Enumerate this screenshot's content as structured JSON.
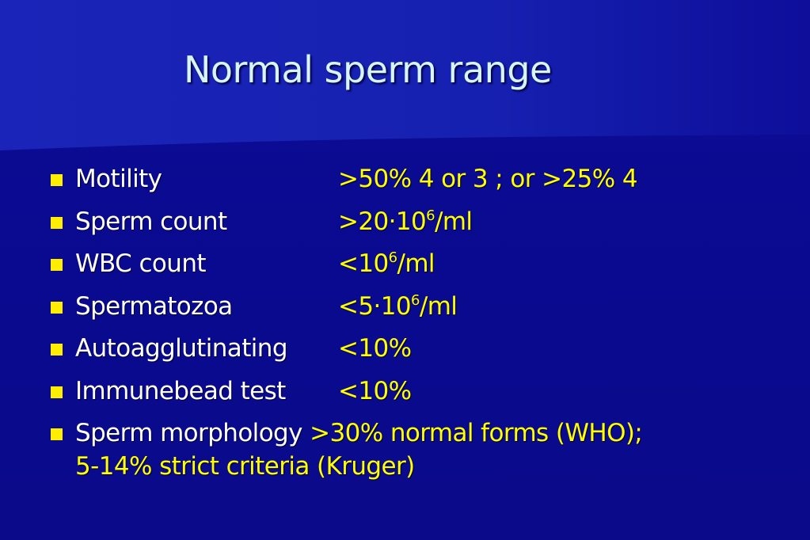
{
  "slide": {
    "title": "Normal sperm range"
  },
  "rows": [
    {
      "label": "Motility",
      "value_pre": ">50% 4 or 3 ; or >25% 4",
      "value_sup": "",
      "value_post": ""
    },
    {
      "label": "Sperm count",
      "value_pre": ">20·10",
      "value_sup": "6",
      "value_post": "/ml"
    },
    {
      "label": "WBC count",
      "value_pre": "<10",
      "value_sup": "6",
      "value_post": "/ml"
    },
    {
      "label": "Spermatozoa",
      "value_pre": "<5·10",
      "value_sup": "6",
      "value_post": "/ml"
    },
    {
      "label": "Autoagglutinating",
      "value_pre": "<10%",
      "value_sup": "",
      "value_post": ""
    },
    {
      "label": "Immunebead test",
      "value_pre": "<10%",
      "value_sup": "",
      "value_post": ""
    }
  ],
  "last_row": {
    "label": "Sperm morphology",
    "value_line1": ">30% normal forms (WHO);",
    "value_line2": "5-14% strict criteria (Kruger)"
  },
  "colors": {
    "background": "#0a0a8c",
    "title": "#d8f5f5",
    "label": "#ffffff",
    "value": "#ffff00",
    "bullet": "#ffee00"
  }
}
